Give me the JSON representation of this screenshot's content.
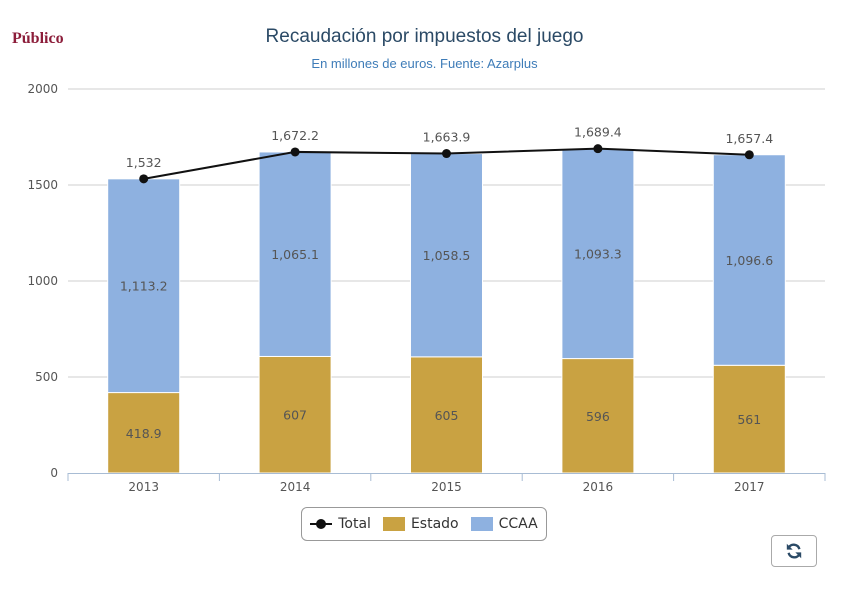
{
  "logo": "Público",
  "chart_data": {
    "type": "bar",
    "title": "Recaudación por impuestos del juego",
    "subtitle": "En millones de euros. Fuente: Azarplus",
    "categories": [
      "2013",
      "2014",
      "2015",
      "2016",
      "2017"
    ],
    "series": [
      {
        "name": "Estado",
        "type": "bar",
        "stacked": true,
        "color": "#c9a242",
        "values": [
          418.9,
          607,
          605,
          596,
          561
        ],
        "labels": [
          "418.9",
          "607",
          "605",
          "596",
          "561"
        ]
      },
      {
        "name": "CCAA",
        "type": "bar",
        "stacked": true,
        "color": "#8eb1e0",
        "values": [
          1113.2,
          1065.1,
          1058.5,
          1093.3,
          1096.6
        ],
        "labels": [
          "1,113.2",
          "1,065.1",
          "1,058.5",
          "1,093.3",
          "1,096.6"
        ]
      },
      {
        "name": "Total",
        "type": "line",
        "color": "#111111",
        "values": [
          1532,
          1672.2,
          1663.9,
          1689.4,
          1657.4
        ],
        "labels": [
          "1,532",
          "1,672.2",
          "1,663.9",
          "1,689.4",
          "1,657.4"
        ]
      }
    ],
    "yticks": [
      "0",
      "500",
      "1000",
      "1500",
      "2000"
    ],
    "ylim": [
      0,
      2000
    ],
    "grid": true,
    "legend_position": "bottom-center",
    "legend": [
      "Total",
      "Estado",
      "CCAA"
    ]
  }
}
